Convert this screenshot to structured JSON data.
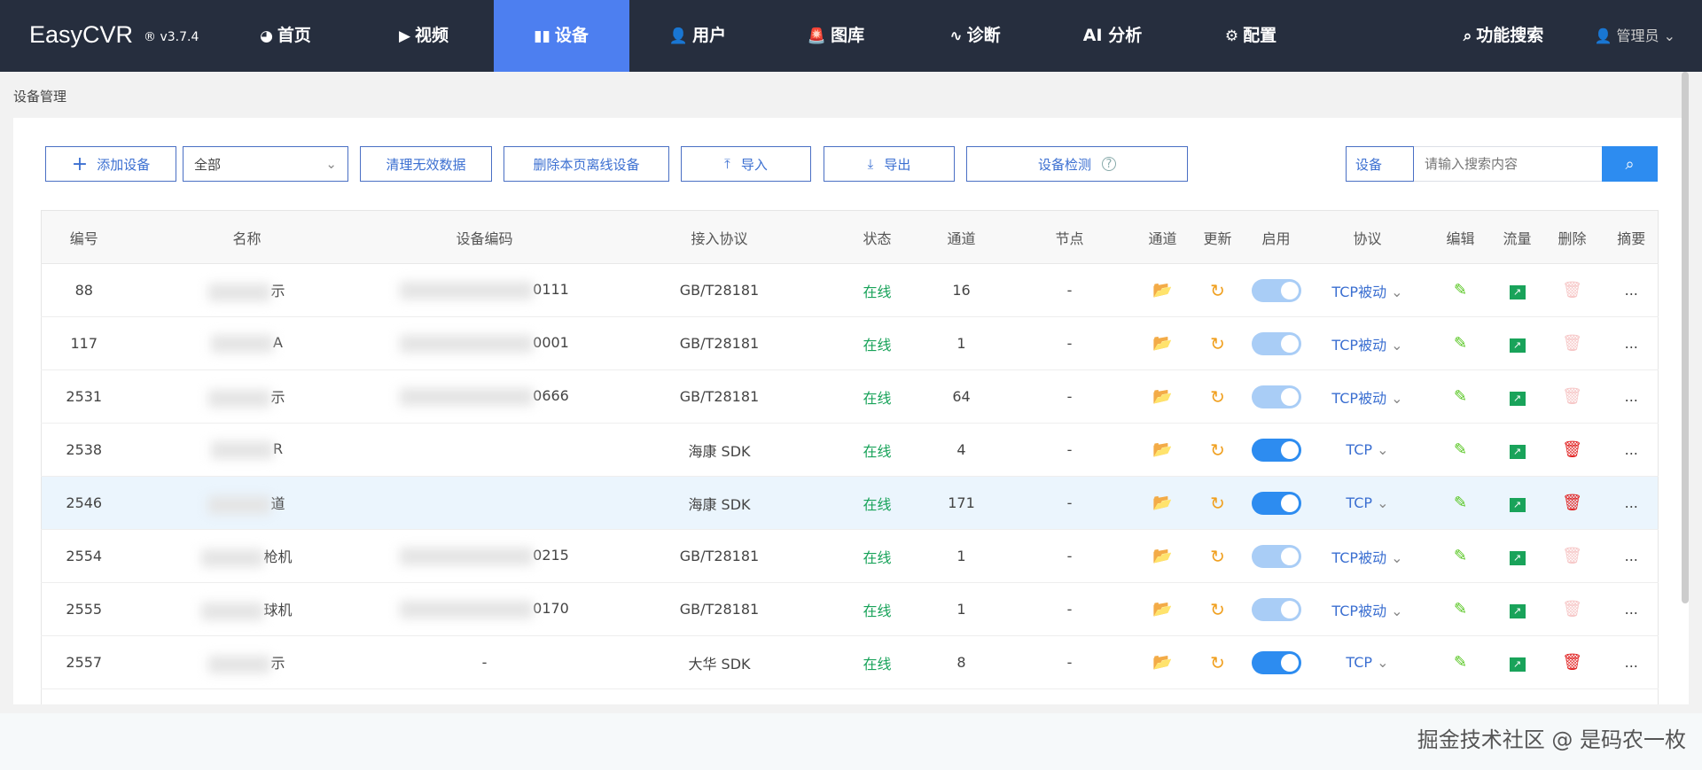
{
  "app": {
    "logo": "EasyCVR",
    "version": "® v3.7.4"
  },
  "nav": [
    {
      "label": "首页",
      "icon": "◕"
    },
    {
      "label": "视频",
      "icon": "▶"
    },
    {
      "label": "设备",
      "icon": "▮▮"
    },
    {
      "label": "用户",
      "icon": "👤"
    },
    {
      "label": "图库",
      "icon": "🚨"
    },
    {
      "label": "诊断",
      "icon": "∿"
    },
    {
      "label": "AI 分析",
      "icon": ""
    },
    {
      "label": "配置",
      "icon": "⚙"
    }
  ],
  "nav_active": "设备",
  "func_search": "功能搜索",
  "user": "管理员",
  "breadcrumb": "设备管理",
  "toolbar": {
    "add": "添加设备",
    "filter": "全部",
    "clean": "清理无效数据",
    "delete_offline": "删除本页离线设备",
    "import": "导入",
    "export": "导出",
    "detect": "设备检测"
  },
  "search": {
    "label": "设备",
    "placeholder": "请输入搜索内容"
  },
  "columns": [
    "编号",
    "名称",
    "设备编码",
    "接入协议",
    "状态",
    "通道",
    "节点",
    "通道",
    "更新",
    "启用",
    "协议",
    "编辑",
    "流量",
    "删除",
    "摘要"
  ],
  "rows": [
    {
      "id": "88",
      "name": "示",
      "code": "0111",
      "access": "GB/T28181",
      "status": "在线",
      "channels": "16",
      "node": "-",
      "enabled_locked": true,
      "protocol": "TCP被动"
    },
    {
      "id": "117",
      "name": "A",
      "code": "0001",
      "access": "GB/T28181",
      "status": "在线",
      "channels": "1",
      "node": "-",
      "enabled_locked": true,
      "protocol": "TCP被动"
    },
    {
      "id": "2531",
      "name": "示",
      "code": "0666",
      "access": "GB/T28181",
      "status": "在线",
      "channels": "64",
      "node": "-",
      "enabled_locked": true,
      "protocol": "TCP被动"
    },
    {
      "id": "2538",
      "name": "R",
      "code": "",
      "access": "海康 SDK",
      "status": "在线",
      "channels": "4",
      "node": "-",
      "enabled_locked": false,
      "protocol": "TCP"
    },
    {
      "id": "2546",
      "name": "道",
      "code": "",
      "access": "海康 SDK",
      "status": "在线",
      "channels": "171",
      "node": "-",
      "enabled_locked": false,
      "protocol": "TCP",
      "highlight": true
    },
    {
      "id": "2554",
      "name": "枪机",
      "code": "0215",
      "access": "GB/T28181",
      "status": "在线",
      "channels": "1",
      "node": "-",
      "enabled_locked": true,
      "protocol": "TCP被动"
    },
    {
      "id": "2555",
      "name": "球机",
      "code": "0170",
      "access": "GB/T28181",
      "status": "在线",
      "channels": "1",
      "node": "-",
      "enabled_locked": true,
      "protocol": "TCP被动"
    },
    {
      "id": "2557",
      "name": "示",
      "code": "-",
      "access": "大华 SDK",
      "status": "在线",
      "channels": "8",
      "node": "-",
      "enabled_locked": false,
      "protocol": "TCP"
    }
  ],
  "summary_more": "...",
  "footer_watermark": "掘金技术社区 @ 是码农一枚",
  "colors": {
    "nav_bg": "#262e3e",
    "active": "#4d7ff0",
    "online": "#19a35a",
    "primary": "#2d8cf0"
  }
}
